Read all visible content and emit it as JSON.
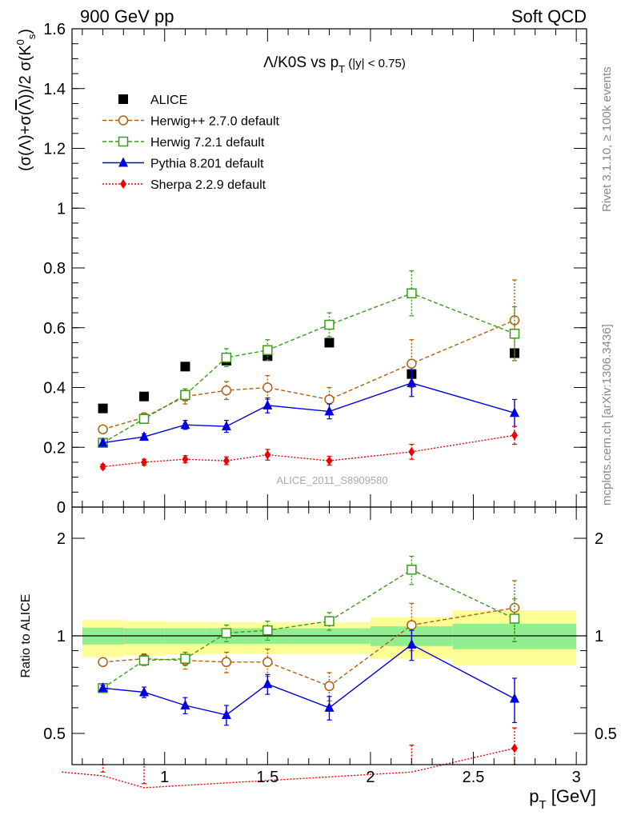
{
  "header": {
    "left_label": "900 GeV pp",
    "right_label": "Soft QCD"
  },
  "side_labels": {
    "rivet": "Rivet 3.1.10, ≥ 100k events",
    "mcplots": "mcplots.cern.ch [arXiv:1306.3436]"
  },
  "colors": {
    "alice": "#000000",
    "herwigpp": "#b15f0c",
    "herwig7": "#3a9a1a",
    "pythia": "#0000dd",
    "sherpa": "#ee0000",
    "band_inner": "#90ee90",
    "band_outer": "#fdfd96"
  },
  "chart_data": [
    {
      "type": "scatter",
      "panel": "main",
      "title": "Λ/K0S vs pT (|y| < 0.75)",
      "watermark": "ALICE_2011_S8909580",
      "ylabel": "(σ(Λ)+σ(Λ̄))/2 σ(K0s)",
      "xlabel": "pT [GeV]",
      "xlim": [
        0.55,
        3.05
      ],
      "ylim": [
        0,
        1.6
      ],
      "y_ticks": [
        "0",
        "0.2",
        "0.4",
        "0.6",
        "0.8",
        "1",
        "1.2",
        "1.4",
        "1.6"
      ],
      "legend_position": "top-left",
      "series": [
        {
          "name": "ALICE",
          "key": "alice",
          "marker": "square-filled",
          "x": [
            0.7,
            0.9,
            1.1,
            1.3,
            1.5,
            1.8,
            2.2,
            2.7
          ],
          "y": [
            0.33,
            0.37,
            0.47,
            0.49,
            0.505,
            0.55,
            0.445,
            0.515
          ]
        },
        {
          "name": "Herwig++ 2.7.0 default",
          "key": "herwigpp",
          "marker": "circle-open",
          "line": "dashed",
          "x": [
            0.7,
            0.9,
            1.1,
            1.3,
            1.5,
            1.8,
            2.2,
            2.7
          ],
          "y": [
            0.26,
            0.3,
            0.37,
            0.39,
            0.4,
            0.36,
            0.48,
            0.625
          ],
          "err": [
            0.01,
            0.015,
            0.025,
            0.03,
            0.04,
            0.04,
            0.08,
            0.135
          ]
        },
        {
          "name": "Herwig 7.2.1 default",
          "key": "herwig7",
          "marker": "square-open",
          "line": "dashed",
          "x": [
            0.7,
            0.9,
            1.1,
            1.3,
            1.5,
            1.8,
            2.2,
            2.7
          ],
          "y": [
            0.215,
            0.295,
            0.375,
            0.5,
            0.525,
            0.61,
            0.715,
            0.58
          ],
          "err": [
            0.01,
            0.015,
            0.02,
            0.03,
            0.035,
            0.04,
            0.075,
            0.09
          ]
        },
        {
          "name": "Pythia 8.201 default",
          "key": "pythia",
          "marker": "triangle-filled",
          "line": "solid",
          "x": [
            0.7,
            0.9,
            1.1,
            1.3,
            1.5,
            1.8,
            2.2,
            2.7
          ],
          "y": [
            0.215,
            0.235,
            0.275,
            0.27,
            0.34,
            0.32,
            0.415,
            0.315
          ],
          "err": [
            0.01,
            0.01,
            0.015,
            0.02,
            0.025,
            0.025,
            0.045,
            0.045
          ]
        },
        {
          "name": "Sherpa 2.2.9 default",
          "key": "sherpa",
          "marker": "diamond-filled",
          "line": "dotted",
          "x": [
            0.7,
            0.9,
            1.1,
            1.3,
            1.5,
            1.8,
            2.2,
            2.7
          ],
          "y": [
            0.135,
            0.15,
            0.16,
            0.155,
            0.175,
            0.155,
            0.185,
            0.24
          ],
          "err": [
            0.008,
            0.01,
            0.012,
            0.013,
            0.018,
            0.015,
            0.025,
            0.03
          ]
        }
      ]
    },
    {
      "type": "scatter",
      "panel": "ratio",
      "ylabel": "Ratio to ALICE",
      "xlim": [
        0.55,
        3.05
      ],
      "ylim": [
        0.35,
        2.3
      ],
      "x_ticks": [
        "1",
        "1.5",
        "2",
        "2.5",
        "3"
      ],
      "y_ticks": [
        "0.5",
        "1",
        "2"
      ],
      "reference_line": 1,
      "uncertainty_bands": [
        {
          "x_low": 0.6,
          "x_high": 0.8,
          "inner": [
            0.94,
            1.06
          ],
          "outer": [
            0.86,
            1.12
          ]
        },
        {
          "x_low": 0.8,
          "x_high": 1.0,
          "inner": [
            0.945,
            1.055
          ],
          "outer": [
            0.87,
            1.11
          ]
        },
        {
          "x_low": 1.0,
          "x_high": 1.2,
          "inner": [
            0.945,
            1.055
          ],
          "outer": [
            0.875,
            1.105
          ]
        },
        {
          "x_low": 1.2,
          "x_high": 1.4,
          "inner": [
            0.945,
            1.055
          ],
          "outer": [
            0.88,
            1.1
          ]
        },
        {
          "x_low": 1.4,
          "x_high": 1.6,
          "inner": [
            0.945,
            1.055
          ],
          "outer": [
            0.88,
            1.1
          ]
        },
        {
          "x_low": 1.6,
          "x_high": 2.0,
          "inner": [
            0.945,
            1.055
          ],
          "outer": [
            0.88,
            1.1
          ]
        },
        {
          "x_low": 2.0,
          "x_high": 2.4,
          "inner": [
            0.93,
            1.07
          ],
          "outer": [
            0.85,
            1.14
          ]
        },
        {
          "x_low": 2.4,
          "x_high": 3.0,
          "inner": [
            0.91,
            1.09
          ],
          "outer": [
            0.81,
            1.2
          ]
        }
      ],
      "series": [
        {
          "name": "Herwig++ 2.7.0 default",
          "key": "herwigpp",
          "marker": "circle-open",
          "line": "dashed",
          "x": [
            0.7,
            0.9,
            1.1,
            1.3,
            1.5,
            1.8,
            2.2,
            2.7
          ],
          "y": [
            0.83,
            0.85,
            0.84,
            0.83,
            0.83,
            0.7,
            1.08,
            1.22
          ],
          "err": [
            0.02,
            0.03,
            0.05,
            0.06,
            0.08,
            0.07,
            0.18,
            0.26
          ]
        },
        {
          "name": "Herwig 7.2.1 default",
          "key": "herwig7",
          "marker": "square-open",
          "line": "dashed",
          "x": [
            0.7,
            0.9,
            1.1,
            1.3,
            1.5,
            1.8,
            2.2,
            2.7
          ],
          "y": [
            0.69,
            0.84,
            0.85,
            1.02,
            1.04,
            1.11,
            1.6,
            1.13
          ],
          "err": [
            0.015,
            0.03,
            0.04,
            0.06,
            0.07,
            0.07,
            0.16,
            0.17
          ]
        },
        {
          "name": "Pythia 8.201 default",
          "key": "pythia",
          "marker": "triangle-filled",
          "line": "solid",
          "x": [
            0.7,
            0.9,
            1.1,
            1.3,
            1.5,
            1.8,
            2.2,
            2.7
          ],
          "y": [
            0.69,
            0.67,
            0.61,
            0.57,
            0.71,
            0.6,
            0.94,
            0.64
          ],
          "err": [
            0.015,
            0.025,
            0.035,
            0.04,
            0.05,
            0.05,
            0.1,
            0.1
          ]
        },
        {
          "name": "Sherpa 2.2.9 default",
          "key": "sherpa",
          "marker": "diamond-filled",
          "line": "dotted",
          "x": [
            0.5,
            0.7,
            0.9,
            2.2,
            2.7
          ],
          "y": [
            0.38,
            0.37,
            0.34,
            0.38,
            0.45
          ],
          "err": [
            0,
            0.01,
            0.01,
            0.08,
            0.07
          ]
        }
      ]
    }
  ]
}
